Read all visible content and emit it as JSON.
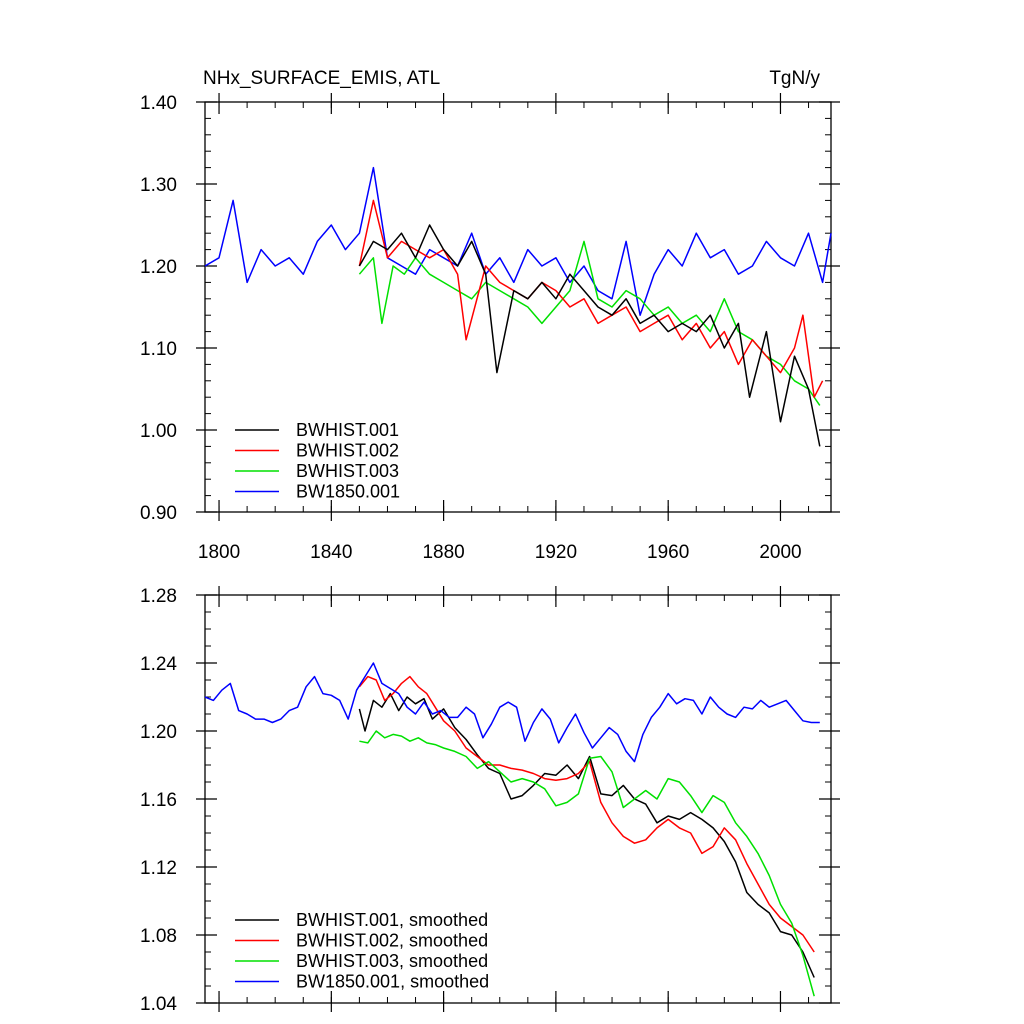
{
  "header": {
    "title": "NHx_SURFACE_EMIS, ATL",
    "units": "TgN/y"
  },
  "colors": {
    "BWHIST.001": "#000000",
    "BWHIST.002": "#ff0000",
    "BWHIST.003": "#00e000",
    "BW1850.001": "#0000ff"
  },
  "chart_data": [
    {
      "type": "line",
      "title": "NHx_SURFACE_EMIS, ATL",
      "units": "TgN/y",
      "xlim": [
        1795,
        2018
      ],
      "ylim": [
        0.9,
        1.4
      ],
      "xticks": [
        1800,
        1840,
        1880,
        1920,
        1960,
        2000
      ],
      "yticks": [
        0.9,
        1.0,
        1.1,
        1.2,
        1.3,
        1.4
      ],
      "ytick_labels": [
        "0.90",
        "1.00",
        "1.10",
        "1.20",
        "1.30",
        "1.40"
      ],
      "legend_position": "lower-left",
      "grid": false,
      "series": [
        {
          "name": "BWHIST.001",
          "color": "#000000",
          "x": [
            1850,
            1855,
            1860,
            1865,
            1870,
            1875,
            1880,
            1885,
            1890,
            1895,
            1899,
            1905,
            1910,
            1915,
            1920,
            1925,
            1930,
            1935,
            1940,
            1945,
            1950,
            1955,
            1960,
            1965,
            1970,
            1975,
            1980,
            1985,
            1989,
            1995,
            2000,
            2005,
            2010,
            2014
          ],
          "y": [
            1.2,
            1.23,
            1.22,
            1.24,
            1.21,
            1.25,
            1.22,
            1.2,
            1.23,
            1.19,
            1.07,
            1.17,
            1.16,
            1.18,
            1.16,
            1.19,
            1.17,
            1.15,
            1.14,
            1.16,
            1.13,
            1.14,
            1.12,
            1.13,
            1.12,
            1.14,
            1.1,
            1.13,
            1.04,
            1.12,
            1.01,
            1.09,
            1.05,
            0.98
          ]
        },
        {
          "name": "BWHIST.002",
          "color": "#ff0000",
          "x": [
            1850,
            1855,
            1860,
            1865,
            1870,
            1875,
            1880,
            1885,
            1888,
            1895,
            1900,
            1905,
            1910,
            1915,
            1920,
            1925,
            1930,
            1935,
            1940,
            1945,
            1950,
            1955,
            1960,
            1965,
            1970,
            1975,
            1980,
            1985,
            1990,
            1995,
            2000,
            2005,
            2008,
            2012,
            2015
          ],
          "y": [
            1.2,
            1.28,
            1.21,
            1.23,
            1.22,
            1.21,
            1.22,
            1.19,
            1.11,
            1.2,
            1.18,
            1.17,
            1.16,
            1.18,
            1.17,
            1.15,
            1.16,
            1.13,
            1.14,
            1.15,
            1.12,
            1.13,
            1.14,
            1.11,
            1.13,
            1.1,
            1.12,
            1.08,
            1.11,
            1.09,
            1.07,
            1.1,
            1.14,
            1.04,
            1.06
          ]
        },
        {
          "name": "BWHIST.003",
          "color": "#00e000",
          "x": [
            1850,
            1855,
            1858,
            1862,
            1866,
            1870,
            1875,
            1880,
            1885,
            1890,
            1895,
            1900,
            1905,
            1910,
            1915,
            1920,
            1925,
            1930,
            1935,
            1940,
            1945,
            1950,
            1955,
            1960,
            1965,
            1970,
            1975,
            1980,
            1985,
            1990,
            1995,
            2000,
            2005,
            2010,
            2014
          ],
          "y": [
            1.19,
            1.21,
            1.13,
            1.2,
            1.19,
            1.21,
            1.19,
            1.18,
            1.17,
            1.16,
            1.18,
            1.17,
            1.16,
            1.15,
            1.13,
            1.15,
            1.17,
            1.23,
            1.16,
            1.15,
            1.17,
            1.16,
            1.14,
            1.15,
            1.13,
            1.14,
            1.12,
            1.16,
            1.12,
            1.11,
            1.09,
            1.08,
            1.06,
            1.05,
            1.03
          ]
        },
        {
          "name": "BW1850.001",
          "color": "#0000ff",
          "x": [
            1795,
            1800,
            1805,
            1810,
            1815,
            1820,
            1825,
            1830,
            1835,
            1840,
            1845,
            1850,
            1855,
            1860,
            1865,
            1870,
            1875,
            1880,
            1885,
            1890,
            1895,
            1900,
            1905,
            1910,
            1915,
            1920,
            1925,
            1930,
            1935,
            1940,
            1945,
            1950,
            1955,
            1960,
            1965,
            1970,
            1975,
            1980,
            1985,
            1990,
            1995,
            2000,
            2005,
            2010,
            2015,
            2018
          ],
          "y": [
            1.2,
            1.21,
            1.28,
            1.18,
            1.22,
            1.2,
            1.21,
            1.19,
            1.23,
            1.25,
            1.22,
            1.24,
            1.32,
            1.21,
            1.2,
            1.19,
            1.22,
            1.21,
            1.2,
            1.24,
            1.19,
            1.21,
            1.18,
            1.22,
            1.2,
            1.21,
            1.18,
            1.2,
            1.17,
            1.16,
            1.23,
            1.14,
            1.19,
            1.22,
            1.2,
            1.24,
            1.21,
            1.22,
            1.19,
            1.2,
            1.23,
            1.21,
            1.2,
            1.24,
            1.18,
            1.24
          ]
        }
      ]
    },
    {
      "type": "line",
      "xlim": [
        1795,
        2018
      ],
      "ylim": [
        1.04,
        1.28
      ],
      "xticks": [
        1800,
        1840,
        1880,
        1920,
        1960,
        2000
      ],
      "yticks": [
        1.04,
        1.08,
        1.12,
        1.16,
        1.2,
        1.24,
        1.28
      ],
      "ytick_labels": [
        "1.04",
        "1.08",
        "1.12",
        "1.16",
        "1.20",
        "1.24",
        "1.28"
      ],
      "legend_position": "lower-left",
      "grid": false,
      "series": [
        {
          "name": "BWHIST.001, smoothed",
          "color": "#000000",
          "x": [
            1850,
            1852,
            1855,
            1858,
            1861,
            1864,
            1867,
            1870,
            1873,
            1876,
            1880,
            1884,
            1888,
            1892,
            1896,
            1900,
            1904,
            1908,
            1912,
            1916,
            1920,
            1924,
            1928,
            1932,
            1936,
            1940,
            1944,
            1948,
            1952,
            1956,
            1960,
            1964,
            1968,
            1972,
            1976,
            1980,
            1984,
            1988,
            1992,
            1996,
            2000,
            2004,
            2008,
            2012
          ],
          "y": [
            1.213,
            1.2,
            1.218,
            1.214,
            1.222,
            1.212,
            1.22,
            1.216,
            1.219,
            1.207,
            1.213,
            1.202,
            1.195,
            1.186,
            1.178,
            1.175,
            1.16,
            1.162,
            1.168,
            1.175,
            1.174,
            1.18,
            1.172,
            1.185,
            1.163,
            1.162,
            1.168,
            1.16,
            1.157,
            1.146,
            1.15,
            1.148,
            1.152,
            1.148,
            1.143,
            1.135,
            1.123,
            1.105,
            1.098,
            1.093,
            1.082,
            1.08,
            1.07,
            1.055
          ]
        },
        {
          "name": "BWHIST.002, smoothed",
          "color": "#ff0000",
          "x": [
            1850,
            1853,
            1856,
            1859,
            1862,
            1865,
            1868,
            1871,
            1874,
            1877,
            1880,
            1884,
            1888,
            1892,
            1896,
            1900,
            1904,
            1908,
            1912,
            1916,
            1920,
            1924,
            1928,
            1932,
            1936,
            1940,
            1944,
            1948,
            1952,
            1956,
            1960,
            1964,
            1968,
            1972,
            1976,
            1980,
            1984,
            1988,
            1992,
            1996,
            2000,
            2004,
            2008,
            2012
          ],
          "y": [
            1.226,
            1.232,
            1.23,
            1.218,
            1.222,
            1.228,
            1.232,
            1.226,
            1.222,
            1.214,
            1.206,
            1.2,
            1.19,
            1.185,
            1.18,
            1.18,
            1.178,
            1.177,
            1.175,
            1.172,
            1.171,
            1.172,
            1.175,
            1.182,
            1.158,
            1.146,
            1.138,
            1.134,
            1.136,
            1.143,
            1.148,
            1.143,
            1.14,
            1.128,
            1.132,
            1.143,
            1.136,
            1.122,
            1.11,
            1.098,
            1.09,
            1.085,
            1.08,
            1.07
          ]
        },
        {
          "name": "BWHIST.003, smoothed",
          "color": "#00e000",
          "x": [
            1850,
            1853,
            1856,
            1859,
            1862,
            1865,
            1868,
            1871,
            1874,
            1877,
            1880,
            1884,
            1888,
            1892,
            1896,
            1900,
            1904,
            1908,
            1912,
            1916,
            1920,
            1924,
            1928,
            1932,
            1936,
            1940,
            1944,
            1948,
            1952,
            1956,
            1960,
            1964,
            1968,
            1972,
            1976,
            1980,
            1984,
            1988,
            1992,
            1996,
            2000,
            2004,
            2008,
            2012
          ],
          "y": [
            1.194,
            1.193,
            1.2,
            1.196,
            1.198,
            1.197,
            1.194,
            1.196,
            1.193,
            1.192,
            1.19,
            1.188,
            1.185,
            1.178,
            1.182,
            1.176,
            1.17,
            1.172,
            1.17,
            1.166,
            1.156,
            1.158,
            1.163,
            1.184,
            1.185,
            1.176,
            1.155,
            1.16,
            1.165,
            1.16,
            1.172,
            1.17,
            1.162,
            1.152,
            1.162,
            1.158,
            1.146,
            1.138,
            1.128,
            1.115,
            1.098,
            1.087,
            1.068,
            1.044
          ]
        },
        {
          "name": "BW1850.001, smoothed",
          "color": "#0000ff",
          "x": [
            1795,
            1798,
            1801,
            1804,
            1807,
            1810,
            1813,
            1816,
            1819,
            1822,
            1825,
            1828,
            1831,
            1834,
            1837,
            1840,
            1843,
            1846,
            1849,
            1852,
            1855,
            1858,
            1861,
            1864,
            1867,
            1870,
            1873,
            1876,
            1879,
            1882,
            1885,
            1888,
            1891,
            1894,
            1897,
            1900,
            1903,
            1906,
            1909,
            1912,
            1915,
            1918,
            1921,
            1924,
            1927,
            1930,
            1933,
            1936,
            1939,
            1942,
            1945,
            1948,
            1951,
            1954,
            1957,
            1960,
            1963,
            1966,
            1969,
            1972,
            1975,
            1978,
            1981,
            1984,
            1987,
            1990,
            1993,
            1996,
            1999,
            2002,
            2005,
            2008,
            2011,
            2014
          ],
          "y": [
            1.22,
            1.218,
            1.224,
            1.228,
            1.212,
            1.21,
            1.207,
            1.207,
            1.205,
            1.207,
            1.212,
            1.214,
            1.226,
            1.232,
            1.222,
            1.221,
            1.218,
            1.207,
            1.224,
            1.232,
            1.24,
            1.228,
            1.225,
            1.222,
            1.214,
            1.21,
            1.217,
            1.21,
            1.212,
            1.208,
            1.208,
            1.214,
            1.21,
            1.196,
            1.204,
            1.214,
            1.217,
            1.214,
            1.194,
            1.205,
            1.213,
            1.207,
            1.193,
            1.202,
            1.21,
            1.199,
            1.19,
            1.196,
            1.202,
            1.198,
            1.188,
            1.182,
            1.198,
            1.208,
            1.214,
            1.222,
            1.216,
            1.219,
            1.218,
            1.21,
            1.22,
            1.214,
            1.21,
            1.208,
            1.214,
            1.213,
            1.218,
            1.214,
            1.216,
            1.218,
            1.212,
            1.206,
            1.205,
            1.205
          ]
        }
      ]
    }
  ]
}
